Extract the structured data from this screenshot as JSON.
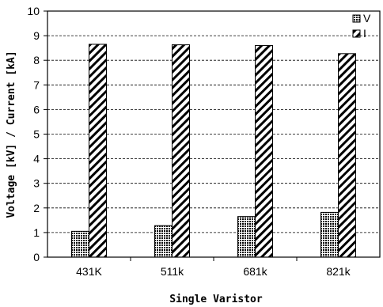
{
  "chart_data": {
    "type": "bar",
    "categories": [
      "431K",
      "511k",
      "681k",
      "821k"
    ],
    "series": [
      {
        "name": "V",
        "values": [
          1.05,
          1.28,
          1.65,
          1.82
        ],
        "pattern": "dots"
      },
      {
        "name": "I",
        "values": [
          8.65,
          8.63,
          8.6,
          8.27
        ],
        "pattern": "hatch"
      }
    ],
    "title": "",
    "xlabel": "Single Varistor",
    "ylabel": "Voltage [kV] / Current [kA]",
    "ylim": [
      0,
      10
    ],
    "yticks": [
      0,
      1,
      2,
      3,
      4,
      5,
      6,
      7,
      8,
      9,
      10
    ],
    "grid": "horizontal-dashed",
    "legend_position": "top-right"
  }
}
